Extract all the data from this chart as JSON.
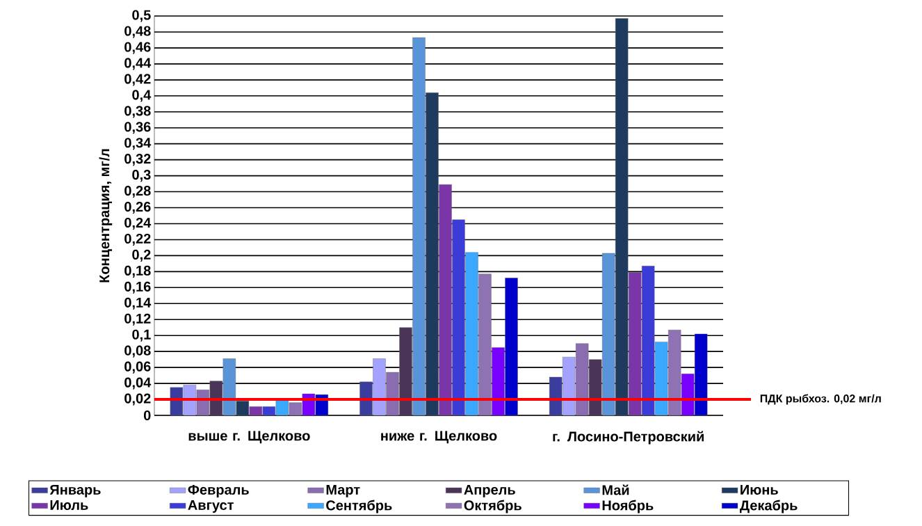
{
  "chart_data": {
    "type": "bar",
    "ylabel": "Концентрация, мг/л",
    "categories": [
      "выше г. Щелково",
      "ниже г. Щелково",
      "г. Лосино-Петровский"
    ],
    "series": [
      {
        "name": "Январь",
        "color": "#3b3d9e",
        "values": [
          0.035,
          0.042,
          0.048
        ]
      },
      {
        "name": "Февраль",
        "color": "#a3a3ff",
        "values": [
          0.038,
          0.071,
          0.073
        ]
      },
      {
        "name": "Март",
        "color": "#8a6cb0",
        "values": [
          0.032,
          0.054,
          0.09
        ]
      },
      {
        "name": "Апрель",
        "color": "#4a3558",
        "values": [
          0.043,
          0.11,
          0.07
        ]
      },
      {
        "name": "Май",
        "color": "#5a94d8",
        "values": [
          0.071,
          0.473,
          0.203
        ]
      },
      {
        "name": "Июнь",
        "color": "#1f3a5f",
        "values": [
          0.018,
          0.404,
          0.497
        ]
      },
      {
        "name": "Июль",
        "color": "#7a36a8",
        "values": [
          0.011,
          0.289,
          0.179
        ]
      },
      {
        "name": "Август",
        "color": "#3b3bd8",
        "values": [
          0.011,
          0.245,
          0.187
        ]
      },
      {
        "name": "Сентябрь",
        "color": "#3aa8ff",
        "values": [
          0.021,
          0.204,
          0.092
        ]
      },
      {
        "name": "Октябрь",
        "color": "#8f72b4",
        "values": [
          0.016,
          0.177,
          0.107
        ]
      },
      {
        "name": "Ноябрь",
        "color": "#7700ff",
        "values": [
          0.027,
          0.085,
          0.052
        ]
      },
      {
        "name": "Декабрь",
        "color": "#0000cc",
        "values": [
          0.026,
          0.172,
          0.102
        ]
      }
    ],
    "ylim": [
      0,
      0.5
    ],
    "yticks": [
      0,
      {
        "value": 0.02,
        "label": "0,02"
      },
      {
        "value": 0.04,
        "label": "0,04"
      },
      {
        "value": 0.06,
        "label": "0,06"
      },
      {
        "value": 0.08,
        "label": "0,08"
      },
      {
        "value": 0.1,
        "label": "0,1"
      },
      {
        "value": 0.12,
        "label": "0,12"
      },
      {
        "value": 0.14,
        "label": "0,14"
      },
      {
        "value": 0.16,
        "label": "0,16"
      },
      {
        "value": 0.18,
        "label": "0,18"
      },
      {
        "value": 0.2,
        "label": "0,2"
      },
      {
        "value": 0.22,
        "label": "0,22"
      },
      {
        "value": 0.24,
        "label": "0,24"
      },
      {
        "value": 0.26,
        "label": "0,26"
      },
      {
        "value": 0.28,
        "label": "0,28"
      },
      {
        "value": 0.3,
        "label": "0,3"
      },
      {
        "value": 0.32,
        "label": "0,32"
      },
      {
        "value": 0.34,
        "label": "0,34"
      },
      {
        "value": 0.36,
        "label": "0,36"
      },
      {
        "value": 0.38,
        "label": "0,38"
      },
      {
        "value": 0.4,
        "label": "0,4"
      },
      {
        "value": 0.42,
        "label": "0,42"
      },
      {
        "value": 0.44,
        "label": "0,44"
      },
      {
        "value": 0.46,
        "label": "0,46"
      },
      {
        "value": 0.48,
        "label": "0,48"
      },
      {
        "value": 0.5,
        "label": "0,5"
      }
    ],
    "grid": "y",
    "legend": "bottom",
    "ref_lines": [
      {
        "axis": "y",
        "value": 0.02,
        "label": "ПДК рыбхоз. 0,02 мг/л",
        "color": "#ff0000"
      }
    ]
  }
}
